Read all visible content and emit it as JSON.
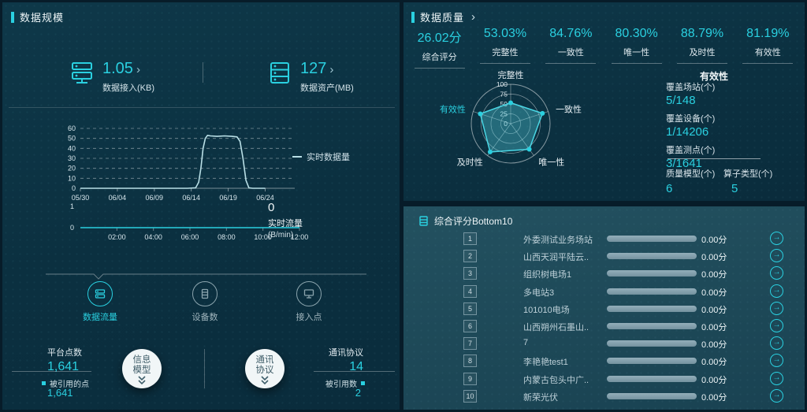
{
  "colors": {
    "accent": "#2ad0e0",
    "panel": "#0d3546",
    "bottom_panel": "#1e4a5a",
    "bar_fill": "#84a1af",
    "line": "#b9dfe6"
  },
  "left_panel": {
    "title": "数据规模",
    "metrics": [
      {
        "icon": "server-ingest-icon",
        "value": "1.05",
        "label": "数据接入(KB)"
      },
      {
        "icon": "server-asset-icon",
        "value": "127",
        "label": "数据资产(MB)"
      }
    ],
    "realtime_data_legend": "实时数据量",
    "flow": {
      "value": "0",
      "legend": "实时流量",
      "unit": "(B/min)"
    },
    "tabs": [
      {
        "label": "数据流量",
        "active": true
      },
      {
        "label": "设备数",
        "active": false
      },
      {
        "label": "接入点",
        "active": false
      }
    ],
    "footer": {
      "platform_points_label": "平台点数",
      "platform_points_value": "1,641",
      "referenced_points_label": "被引用的点",
      "referenced_points_value": "1,641",
      "info_model_label": "信息模型",
      "protocol_circle_label": "通讯协议",
      "protocol_label": "通讯协议",
      "protocol_value": "14",
      "referenced_count_label": "被引用数",
      "referenced_count_value": "2"
    }
  },
  "right_panel": {
    "title": "数据质量",
    "scores": [
      {
        "value": "26.02分",
        "label": "综合评分"
      },
      {
        "value": "53.03%",
        "label": "完整性"
      },
      {
        "value": "84.76%",
        "label": "一致性"
      },
      {
        "value": "80.30%",
        "label": "唯一性"
      },
      {
        "value": "88.79%",
        "label": "及时性"
      },
      {
        "value": "81.19%",
        "label": "有效性"
      }
    ],
    "coverage": {
      "title": "有效性",
      "items": [
        {
          "label": "覆盖场站(个)",
          "value": "5/148"
        },
        {
          "label": "覆盖设备(个)",
          "value": "1/14206"
        },
        {
          "label": "覆盖测点(个)",
          "value": "3/1641"
        }
      ],
      "footer_items": [
        {
          "label": "质量模型(个)",
          "value": "6"
        },
        {
          "label": "算子类型(个)",
          "value": "5"
        }
      ]
    },
    "bottom10": {
      "title": "综合评分Bottom10",
      "rows": [
        {
          "rank": "1",
          "name": "外委测试业务场站",
          "score": "0.00分"
        },
        {
          "rank": "2",
          "name": "山西天润平陆云..",
          "score": "0.00分"
        },
        {
          "rank": "3",
          "name": "组织树电场1",
          "score": "0.00分"
        },
        {
          "rank": "4",
          "name": "多电站3",
          "score": "0.00分"
        },
        {
          "rank": "5",
          "name": "101010电场",
          "score": "0.00分"
        },
        {
          "rank": "6",
          "name": "山西朔州石墨山..",
          "score": "0.00分"
        },
        {
          "rank": "7",
          "name": "7",
          "score": "0.00分"
        },
        {
          "rank": "8",
          "name": "李艳艳test1",
          "score": "0.00分"
        },
        {
          "rank": "9",
          "name": "内蒙古包头中广..",
          "score": "0.00分"
        },
        {
          "rank": "10",
          "name": "新荣光伏",
          "score": "0.00分"
        }
      ]
    }
  },
  "chart_data": [
    {
      "type": "line",
      "title": "实时数据量",
      "x_ticks": [
        "05/30",
        "06/04",
        "06/09",
        "06/14",
        "06/19",
        "06/24"
      ],
      "x_tick_days": [
        0,
        5,
        10,
        15,
        20,
        25
      ],
      "x_range": [
        0,
        29
      ],
      "ylim": [
        0,
        60
      ],
      "yticks": [
        0,
        10,
        20,
        30,
        40,
        50,
        60
      ],
      "grid": "dashed",
      "legend_position": "right",
      "line_color": "#b9dfe6",
      "series": [
        {
          "name": "实时数据量",
          "points": [
            [
              0,
              0
            ],
            [
              5,
              0
            ],
            [
              10,
              0
            ],
            [
              14.5,
              0
            ],
            [
              15.6,
              0.5
            ],
            [
              16,
              6
            ],
            [
              16.3,
              20
            ],
            [
              16.6,
              40
            ],
            [
              16.9,
              50
            ],
            [
              17.2,
              53
            ],
            [
              17.6,
              52.5
            ],
            [
              18.5,
              52
            ],
            [
              19.5,
              52.5
            ],
            [
              20.5,
              52
            ],
            [
              21.2,
              51.5
            ],
            [
              21.6,
              47
            ],
            [
              22,
              30
            ],
            [
              22.4,
              8
            ],
            [
              22.8,
              0.5
            ],
            [
              23.3,
              0
            ],
            [
              25,
              0
            ]
          ]
        }
      ]
    },
    {
      "type": "line",
      "title": "实时流量",
      "unit": "(B/min)",
      "current_value": "0",
      "x_ticks": [
        "02:00",
        "04:00",
        "06:00",
        "08:00",
        "10:00",
        "12:00"
      ],
      "x_tick_vals": [
        2,
        4,
        6,
        8,
        10,
        12
      ],
      "x_range": [
        0,
        12
      ],
      "ylim": [
        0,
        1
      ],
      "yticks": [
        0,
        1
      ],
      "grid": "off",
      "line_color": "#2ad0e0",
      "series": [
        {
          "name": "实时流量",
          "points": [
            [
              0.1,
              0
            ],
            [
              12,
              0
            ]
          ]
        }
      ]
    },
    {
      "type": "radar",
      "categories": [
        "完整性",
        "一致性",
        "唯一性",
        "及时性",
        "有效性"
      ],
      "values": [
        53.03,
        84.76,
        80.3,
        88.79,
        81.19
      ],
      "ticks": [
        0,
        25,
        50,
        75,
        100
      ],
      "max": 100,
      "highlighted_category": "有效性",
      "fill": "rgba(80,200,215,0.38)",
      "stroke": "#49d6e4"
    }
  ]
}
